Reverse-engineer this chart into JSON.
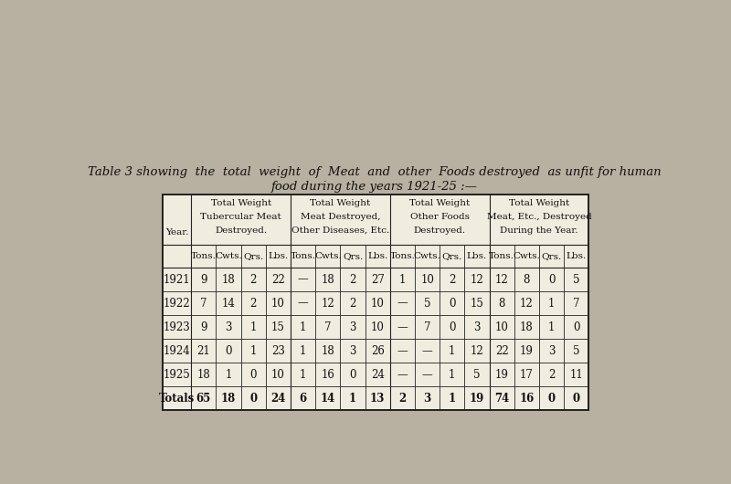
{
  "title_line1": "Table 3 showing  the  total  weight  of  Meat  and  other  Foods destroyed  as unfit for human",
  "title_line2": "food during the years 1921-25 :—",
  "col_group_headers": [
    [
      "Total Weight",
      "Tubercular Meat",
      "Destroyed."
    ],
    [
      "Total Weight",
      "Meat Destroyed,",
      "Other Diseases, Etc."
    ],
    [
      "Total Weight",
      "Other Foods",
      "Destroyed."
    ],
    [
      "Total Weight",
      "Meat, Etc., Destroyed",
      "During the Year."
    ]
  ],
  "sub_headers": [
    "Tons.",
    "Cwts.",
    "Qrs.",
    "Lbs."
  ],
  "row_header": "Year.",
  "rows": [
    {
      "year": "1921",
      "vals": [
        "9",
        "18",
        "2",
        "22",
        "—",
        "18",
        "2",
        "27",
        "1",
        "10",
        "2",
        "12",
        "12",
        "8",
        "0",
        "5"
      ]
    },
    {
      "year": "1922",
      "vals": [
        "7",
        "14",
        "2",
        "10",
        "—",
        "12",
        "2",
        "10",
        "—",
        "5",
        "0",
        "15",
        "8",
        "12",
        "1",
        "7"
      ]
    },
    {
      "year": "1923",
      "vals": [
        "9",
        "3",
        "1",
        "15",
        "1",
        "7",
        "3",
        "10",
        "—",
        "7",
        "0",
        "3",
        "10",
        "18",
        "1",
        "0"
      ]
    },
    {
      "year": "1924",
      "vals": [
        "21",
        "0",
        "1",
        "23",
        "1",
        "18",
        "3",
        "26",
        "—",
        "—",
        "1",
        "12",
        "22",
        "19",
        "3",
        "5"
      ]
    },
    {
      "year": "1925",
      "vals": [
        "18",
        "1",
        "0",
        "10",
        "1",
        "16",
        "0",
        "24",
        "—",
        "—",
        "1",
        "5",
        "19",
        "17",
        "2",
        "11"
      ]
    },
    {
      "year": "Totals",
      "vals": [
        "65",
        "18",
        "0",
        "24",
        "6",
        "14",
        "1",
        "13",
        "2",
        "3",
        "1",
        "19",
        "74",
        "16",
        "0",
        "0"
      ]
    }
  ],
  "bg_color": "#b8b0a0",
  "table_bg": "#f0ece0",
  "border_color": "#222222",
  "text_color": "#111111",
  "title_fontsize": 9.5,
  "header_fontsize": 7.5,
  "subheader_fontsize": 7.5,
  "cell_fontsize": 8.5
}
